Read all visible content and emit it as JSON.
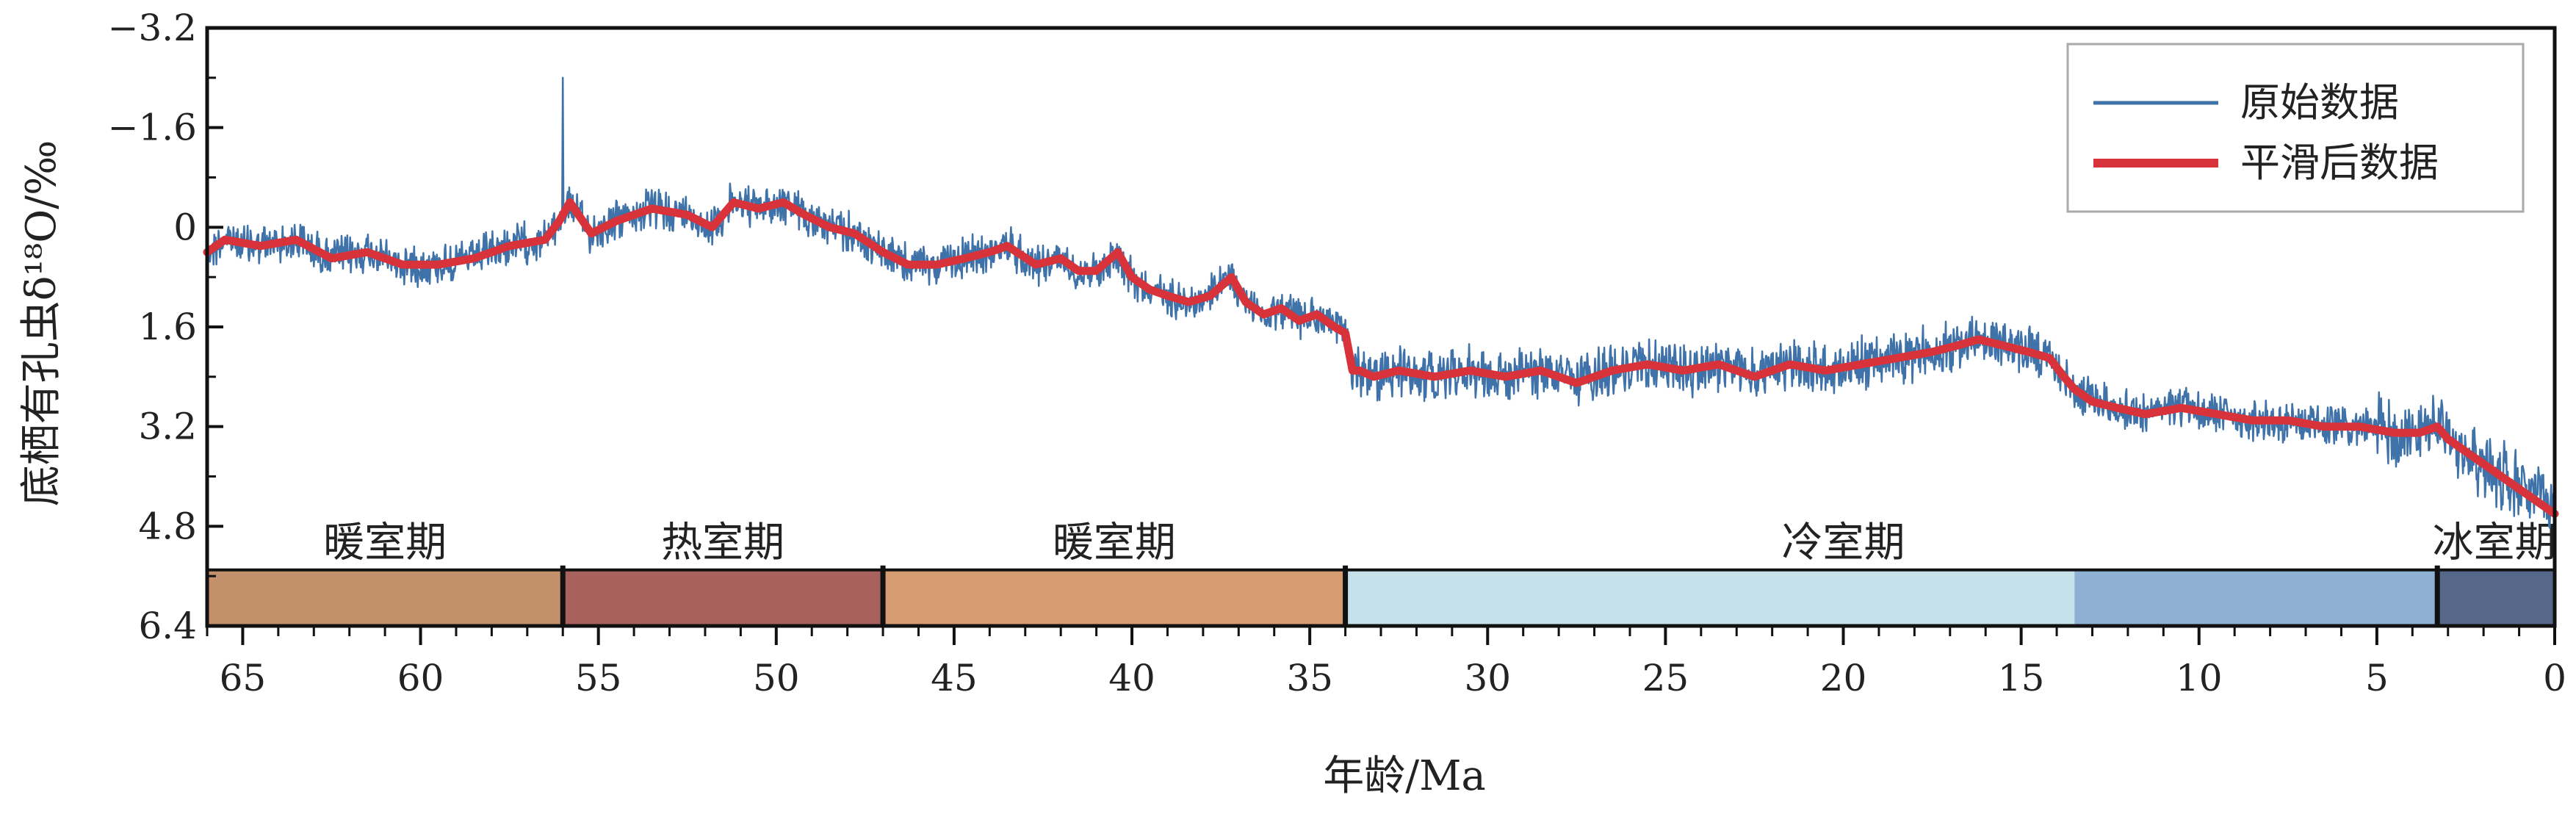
{
  "chart_data": {
    "type": "line",
    "xlabel": "年龄/Ma",
    "ylabel": "底栖有孔虫δ¹⁸O/‰",
    "xlim": [
      66,
      0
    ],
    "ylim": [
      6.4,
      -3.2
    ],
    "x_ticks": [
      65,
      60,
      55,
      50,
      45,
      40,
      35,
      30,
      25,
      20,
      15,
      10,
      5,
      0
    ],
    "y_ticks": [
      "-3.2",
      "-1.6",
      "0",
      "1.6",
      "3.2",
      "4.8",
      "6.4"
    ],
    "y_tick_values": [
      -3.2,
      -1.6,
      0,
      1.6,
      3.2,
      4.8,
      6.4
    ],
    "legend": {
      "position": "top-right",
      "entries": [
        {
          "label": "原始数据",
          "color": "#3f72a8"
        },
        {
          "label": "平滑后数据",
          "color": "#d8323a"
        }
      ]
    },
    "series": [
      {
        "name": "原始数据",
        "color": "#3f72a8",
        "spike": {
          "x": 56.0,
          "y": -2.4
        },
        "noise_amp": 0.25
      },
      {
        "name": "平滑后数据",
        "color": "#d8323a",
        "x": [
          66,
          65.5,
          64.5,
          63.5,
          62.5,
          61.5,
          60.5,
          59.5,
          58.5,
          57.5,
          56.5,
          56.1,
          55.8,
          55.2,
          54.5,
          53.5,
          52.5,
          51.8,
          51.2,
          50.5,
          49.8,
          49.2,
          48.5,
          47.8,
          47.0,
          46.3,
          45.5,
          44.7,
          44.0,
          43.5,
          42.7,
          42.0,
          41.5,
          41.0,
          40.4,
          40.0,
          39.5,
          39.0,
          38.4,
          37.8,
          37.2,
          36.8,
          36.3,
          35.8,
          35.3,
          34.8,
          34.3,
          34.0,
          33.8,
          33.6,
          33.2,
          32.5,
          31.5,
          30.5,
          29.5,
          28.5,
          27.5,
          26.5,
          25.5,
          24.5,
          23.5,
          22.5,
          21.5,
          20.5,
          19.5,
          18.5,
          17.5,
          16.8,
          16.2,
          15.5,
          14.8,
          14.2,
          13.8,
          13.5,
          13.0,
          12.3,
          11.5,
          10.5,
          9.5,
          8.5,
          7.5,
          6.5,
          5.5,
          4.5,
          3.8,
          3.3,
          3.0,
          2.5,
          2.0,
          1.5,
          1.0,
          0.5,
          0.0
        ],
        "values": [
          0.4,
          0.2,
          0.3,
          0.2,
          0.5,
          0.4,
          0.6,
          0.6,
          0.5,
          0.3,
          0.2,
          -0.1,
          -0.4,
          0.1,
          -0.1,
          -0.3,
          -0.2,
          0.0,
          -0.4,
          -0.3,
          -0.4,
          -0.2,
          0.0,
          0.1,
          0.4,
          0.6,
          0.6,
          0.5,
          0.4,
          0.3,
          0.6,
          0.5,
          0.7,
          0.7,
          0.4,
          0.8,
          1.0,
          1.1,
          1.2,
          1.1,
          0.8,
          1.2,
          1.4,
          1.3,
          1.5,
          1.4,
          1.6,
          1.7,
          2.3,
          2.3,
          2.4,
          2.3,
          2.4,
          2.3,
          2.4,
          2.3,
          2.5,
          2.3,
          2.2,
          2.3,
          2.2,
          2.4,
          2.2,
          2.3,
          2.2,
          2.1,
          2.0,
          1.9,
          1.8,
          1.9,
          2.0,
          2.1,
          2.4,
          2.6,
          2.8,
          2.9,
          3.0,
          2.9,
          3.0,
          3.1,
          3.1,
          3.2,
          3.2,
          3.3,
          3.3,
          3.2,
          3.4,
          3.6,
          3.8,
          4.0,
          4.2,
          4.4,
          4.6
        ]
      }
    ],
    "bands": [
      {
        "label": "暖室期",
        "start": 66,
        "end": 56,
        "color": "#c3906c"
      },
      {
        "label": "热室期",
        "start": 56,
        "end": 47,
        "color": "#a8615c"
      },
      {
        "label": "暖室期",
        "start": 47,
        "end": 34,
        "color": "#d49c70"
      },
      {
        "label": "冷室期",
        "start": 34,
        "end": 13.5,
        "color": "#c5e1ea"
      },
      {
        "label": "",
        "start": 13.5,
        "end": 3.3,
        "color": "#8eb0d3"
      },
      {
        "label": "冰室期",
        "start": 3.3,
        "end": 0,
        "color": "#56688a"
      }
    ],
    "band_labels": [
      {
        "label": "暖室期",
        "at": 61
      },
      {
        "label": "热室期",
        "at": 51.5
      },
      {
        "label": "暖室期",
        "at": 40.5
      },
      {
        "label": "冷室期",
        "at": 20
      },
      {
        "label": "冰室期",
        "at": 1.7
      }
    ],
    "band_dividers": [
      56,
      47,
      34,
      3.3
    ]
  }
}
